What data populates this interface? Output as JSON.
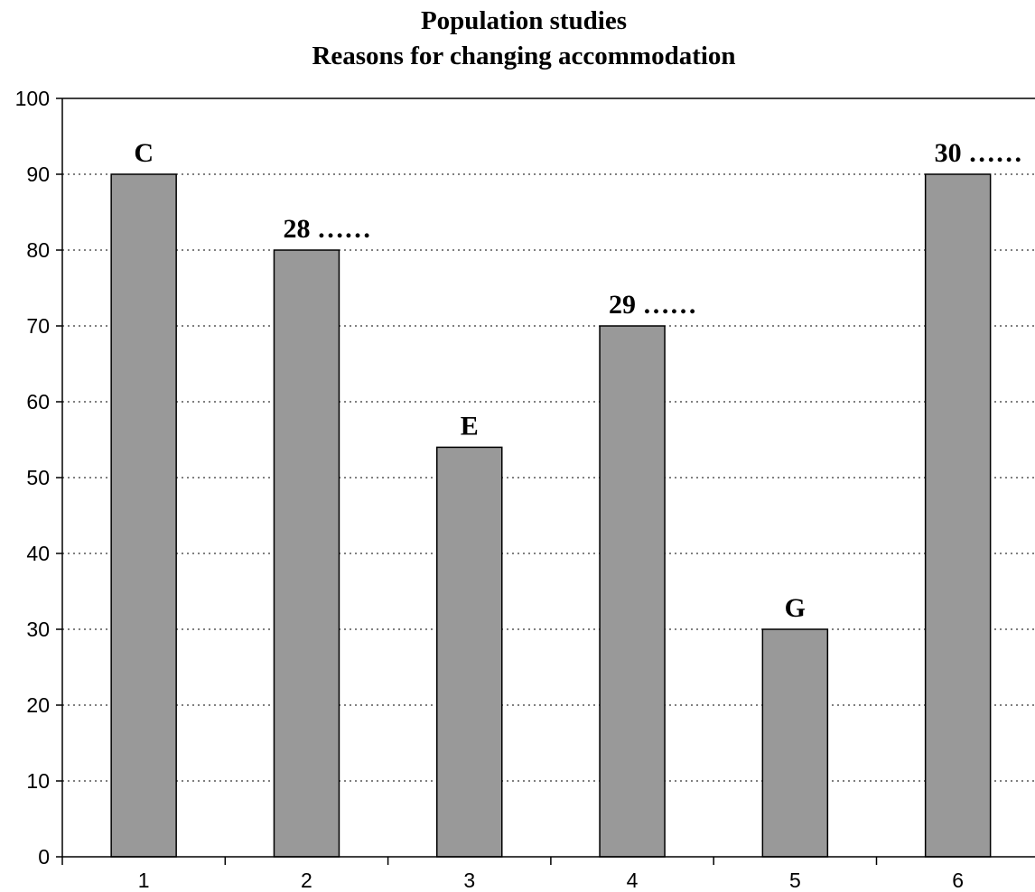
{
  "chart_data": {
    "type": "bar",
    "title": "Population studies",
    "subtitle": "Reasons for changing accommodation",
    "xlabel": "",
    "ylabel": "",
    "categories": [
      "1",
      "2",
      "3",
      "4",
      "5",
      "6"
    ],
    "values": [
      90,
      80,
      54,
      70,
      30,
      90
    ],
    "bar_labels": [
      "C",
      "28 ……",
      "E",
      "29 ……",
      "G",
      "30 ……"
    ],
    "ylim": [
      0,
      100
    ],
    "yticks": [
      0,
      10,
      20,
      30,
      40,
      50,
      60,
      70,
      80,
      90,
      100
    ],
    "grid": true,
    "legend": "none",
    "bar_color": "#999999"
  }
}
